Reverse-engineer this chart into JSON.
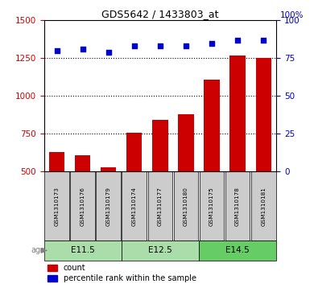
{
  "title": "GDS5642 / 1433803_at",
  "samples": [
    "GSM1310173",
    "GSM1310176",
    "GSM1310179",
    "GSM1310174",
    "GSM1310177",
    "GSM1310180",
    "GSM1310175",
    "GSM1310178",
    "GSM1310181"
  ],
  "counts": [
    630,
    610,
    530,
    760,
    840,
    880,
    1110,
    1270,
    1250
  ],
  "percentiles": [
    80,
    81,
    79,
    83,
    83,
    83,
    85,
    87,
    87
  ],
  "groups": [
    {
      "label": "E11.5",
      "start": 0,
      "end": 3,
      "color": "#aaddaa"
    },
    {
      "label": "E12.5",
      "start": 3,
      "end": 6,
      "color": "#aaddaa"
    },
    {
      "label": "E14.5",
      "start": 6,
      "end": 9,
      "color": "#66cc66"
    }
  ],
  "ylim_left": [
    500,
    1500
  ],
  "ylim_right": [
    0,
    100
  ],
  "yticks_left": [
    500,
    750,
    1000,
    1250,
    1500
  ],
  "yticks_right": [
    0,
    25,
    50,
    75,
    100
  ],
  "bar_color": "#cc0000",
  "dot_color": "#0000cc",
  "axis_color_left": "#cc0000",
  "axis_color_right": "#0000cc",
  "legend_count": "count",
  "legend_percentile": "percentile rank within the sample",
  "sample_box_color": "#cccccc",
  "fig_width": 3.9,
  "fig_height": 3.63,
  "dpi": 100
}
